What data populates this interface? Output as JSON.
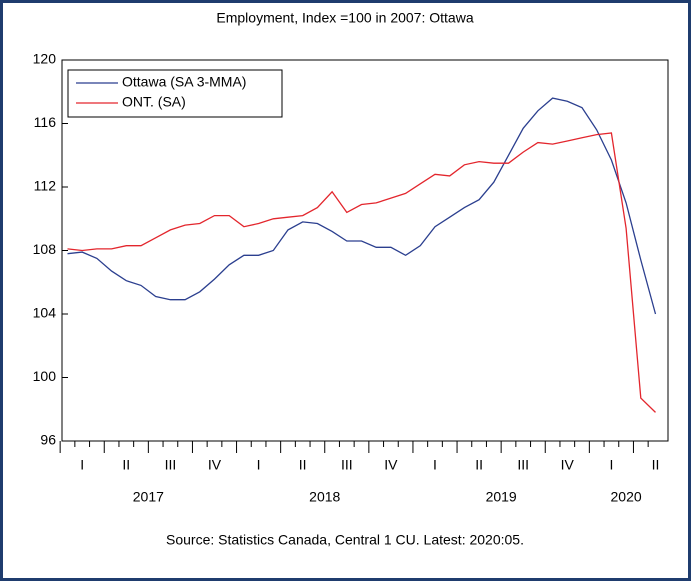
{
  "chart_data": {
    "type": "line",
    "title": "Employment, Index =100 in 2007: Ottawa",
    "source": "Source: Statistics Canada, Central 1 CU. Latest: 2020:05.",
    "categories": [
      null,
      "I",
      null,
      null,
      "II",
      null,
      null,
      "III",
      null,
      null,
      "IV",
      null,
      null,
      "I",
      null,
      null,
      "II",
      null,
      null,
      "III",
      null,
      null,
      "IV",
      null,
      null,
      "I",
      null,
      null,
      "II",
      null,
      null,
      "III",
      null,
      null,
      "IV",
      null,
      null,
      "I",
      null,
      null,
      "II"
    ],
    "years": [
      "2017",
      "2018",
      "2019",
      "2020"
    ],
    "series": [
      {
        "name": "Ottawa (SA 3-MMA)",
        "color": "#2b3f8f",
        "values": [
          107.8,
          107.9,
          107.5,
          106.7,
          106.1,
          105.8,
          105.1,
          104.9,
          104.9,
          105.4,
          106.2,
          107.1,
          107.7,
          107.7,
          108.0,
          109.3,
          109.8,
          109.7,
          109.2,
          108.6,
          108.6,
          108.2,
          108.2,
          107.7,
          108.3,
          109.5,
          110.1,
          110.7,
          111.2,
          112.3,
          114.0,
          115.7,
          116.8,
          117.6,
          117.4,
          117.0,
          115.6,
          113.7,
          111.0,
          107.4,
          104.0
        ]
      },
      {
        "name": "ONT. (SA)",
        "color": "#e3262d",
        "values": [
          108.1,
          108.0,
          108.1,
          108.1,
          108.3,
          108.3,
          108.8,
          109.3,
          109.6,
          109.7,
          110.2,
          110.2,
          109.5,
          109.7,
          110.0,
          110.1,
          110.2,
          110.7,
          111.7,
          110.4,
          110.9,
          111.0,
          111.3,
          111.6,
          112.2,
          112.8,
          112.7,
          113.4,
          113.6,
          113.5,
          113.5,
          114.2,
          114.8,
          114.7,
          114.9,
          115.1,
          115.3,
          115.4,
          109.4,
          98.7,
          97.8
        ]
      }
    ],
    "ylim": [
      96,
      120
    ],
    "yticks": [
      96,
      100,
      104,
      108,
      112,
      116,
      120
    ],
    "grid": false,
    "legend": "upper left"
  }
}
